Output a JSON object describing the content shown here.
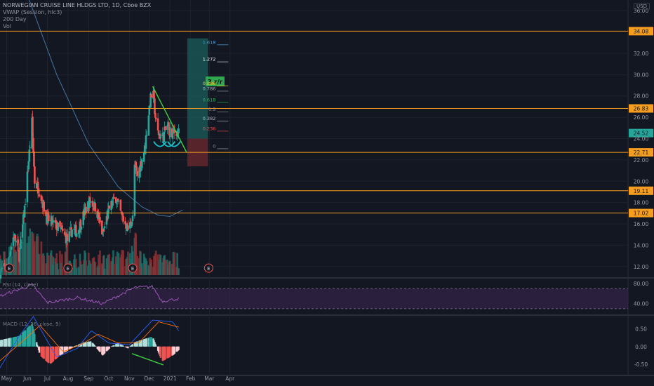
{
  "legend": {
    "title": "NORWEGIAN CRUISE LINE HLDGS LTD, 1D, Cboe BZX",
    "lines": [
      "VWAP (Session, hlc3)",
      "200 Day",
      "Vol"
    ]
  },
  "currency": "USD",
  "colors": {
    "background": "#131722",
    "up": "#26a69a",
    "down": "#ef5350",
    "level_line": "#f59d1f",
    "trendline": "#3fd03f",
    "ma": "#5b9bd5",
    "rsi": "#9b59b6",
    "macd": "#2962ff",
    "signal": "#ff6d00"
  },
  "chart_data": [
    {
      "type": "candlestick",
      "title": "NORWEGIAN CRUISE LINE HLDGS LTD, 1D, Cboe BZX",
      "y_axis_labels": [
        "36.00",
        "34.08",
        "32.00",
        "30.00",
        "28.00",
        "26.83",
        "26.00",
        "24.52",
        "24.00",
        "22.71",
        "22.00",
        "20.00",
        "19.11",
        "18.00",
        "17.02",
        "16.00",
        "14.00",
        "12.00"
      ],
      "y_ticks": [
        36,
        32,
        30,
        28,
        26,
        24,
        22,
        20,
        18,
        16,
        14,
        12
      ],
      "ylim": [
        11,
        37
      ],
      "x_ticks": [
        "May",
        "Jun",
        "Jul",
        "Aug",
        "Sep",
        "Oct",
        "Nov",
        "Dec",
        "2021",
        "Feb",
        "Mar",
        "Apr"
      ],
      "x_tick_dates": [
        "2020-05-01",
        "2020-06-01",
        "2020-07-01",
        "2020-08-01",
        "2020-09-01",
        "2020-10-01",
        "2020-11-01",
        "2020-12-01",
        "2021-01-01",
        "2021-02-01",
        "2021-03-01",
        "2021-04-01"
      ],
      "price_path": [
        [
          "2020-04-21",
          11.5
        ],
        [
          "2020-05-01",
          12.0
        ],
        [
          "2020-05-12",
          15.0
        ],
        [
          "2020-05-20",
          13.0
        ],
        [
          "2020-05-28",
          17.5
        ],
        [
          "2020-06-03",
          22.0
        ],
        [
          "2020-06-08",
          25.5
        ],
        [
          "2020-06-12",
          20.0
        ],
        [
          "2020-06-20",
          19.0
        ],
        [
          "2020-06-30",
          16.5
        ],
        [
          "2020-07-10",
          16.0
        ],
        [
          "2020-07-20",
          15.5
        ],
        [
          "2020-07-31",
          14.5
        ],
        [
          "2020-08-07",
          15.5
        ],
        [
          "2020-08-15",
          15.2
        ],
        [
          "2020-08-25",
          17.0
        ],
        [
          "2020-09-03",
          18.2
        ],
        [
          "2020-09-12",
          17.5
        ],
        [
          "2020-09-22",
          15.0
        ],
        [
          "2020-10-02",
          17.5
        ],
        [
          "2020-10-12",
          18.5
        ],
        [
          "2020-10-20",
          16.8
        ],
        [
          "2020-10-30",
          15.5
        ],
        [
          "2020-11-06",
          16.5
        ],
        [
          "2020-11-09",
          21.5
        ],
        [
          "2020-11-13",
          20.5
        ],
        [
          "2020-11-24",
          23.0
        ],
        [
          "2020-12-02",
          27.5
        ],
        [
          "2020-12-06",
          28.6
        ],
        [
          "2020-12-12",
          24.8
        ],
        [
          "2020-12-20",
          24.0
        ],
        [
          "2020-12-28",
          25.2
        ],
        [
          "2021-01-04",
          24.3
        ],
        [
          "2021-01-10",
          24.8
        ],
        [
          "2021-01-14",
          24.5
        ]
      ],
      "volume_events": [
        {
          "date": "2020-05-05",
          "label": "E"
        },
        {
          "date": "2020-08-01",
          "label": "E"
        },
        {
          "date": "2020-11-06",
          "label": "E"
        },
        {
          "date": "2021-02-28",
          "label": "E"
        }
      ],
      "horizontal_levels": [
        34.08,
        26.83,
        22.71,
        19.11,
        17.02
      ],
      "last_price": 24.52,
      "trendline": {
        "start": [
          "2020-12-06",
          28.9
        ],
        "end": [
          "2021-01-26",
          22.7
        ]
      },
      "moving_average_path": [
        [
          "2020-04-21",
          44.0
        ],
        [
          "2020-06-01",
          37.5
        ],
        [
          "2020-07-15",
          30.0
        ],
        [
          "2020-09-01",
          23.5
        ],
        [
          "2020-10-15",
          19.5
        ],
        [
          "2020-11-20",
          17.6
        ],
        [
          "2020-12-15",
          16.8
        ],
        [
          "2021-01-01",
          16.7
        ],
        [
          "2021-01-20",
          17.3
        ]
      ],
      "patterns": [
        {
          "type": "cup",
          "center": "2020-12-17",
          "y": 23.4
        },
        {
          "type": "cup",
          "center": "2020-12-30",
          "y": 23.4
        },
        {
          "type": "cup",
          "center": "2021-01-07",
          "y": 23.4
        }
      ],
      "risk_reward": {
        "label": "3 r/r",
        "start": "2021-01-27",
        "end": "2021-02-27",
        "entry": 24.0,
        "target": 33.4,
        "stop": 21.4
      },
      "fibonacci": [
        {
          "label": "1.618",
          "value": 32.8,
          "color": "#4aa3df"
        },
        {
          "label": "1.272",
          "value": 31.2,
          "color": "#ffffff"
        },
        {
          "label": "0.886",
          "value": 28.95,
          "color": "#f0d43a"
        },
        {
          "label": "0.786",
          "value": 28.45,
          "color": "#b2b5be"
        },
        {
          "label": "0.618",
          "value": 27.4,
          "color": "#2dbb5b"
        },
        {
          "label": "0.5",
          "value": 26.5,
          "color": "#9598a1"
        },
        {
          "label": "0.382",
          "value": 25.65,
          "color": "#b2b5be"
        },
        {
          "label": "0.236",
          "value": 24.7,
          "color": "#ef5350"
        },
        {
          "label": "0",
          "value": 23.05,
          "color": "#9598a1"
        }
      ]
    },
    {
      "type": "line",
      "title": "RSI (14, close)",
      "y_axis_labels": [
        "80.00",
        "40.00"
      ],
      "ylim": [
        20,
        90
      ],
      "bands": [
        70,
        30
      ],
      "path": [
        [
          "2020-04-21",
          55
        ],
        [
          "2020-06-08",
          78
        ],
        [
          "2020-07-01",
          42
        ],
        [
          "2020-08-15",
          52
        ],
        [
          "2020-09-22",
          40
        ],
        [
          "2020-11-09",
          72
        ],
        [
          "2020-12-06",
          74
        ],
        [
          "2020-12-20",
          45
        ],
        [
          "2021-01-14",
          50
        ]
      ]
    },
    {
      "type": "bar",
      "title": "MACD (12, 26, close, 9)",
      "y_axis_labels": [
        "0.50",
        "0.00",
        "-0.50"
      ],
      "ylim": [
        -0.72,
        0.85
      ],
      "hist_path": [
        [
          "2020-04-21",
          0.18
        ],
        [
          "2020-05-20",
          0.3
        ],
        [
          "2020-06-08",
          0.65
        ],
        [
          "2020-06-20",
          -0.25
        ],
        [
          "2020-07-05",
          -0.5
        ],
        [
          "2020-07-20",
          -0.25
        ],
        [
          "2020-08-10",
          0.0
        ],
        [
          "2020-08-25",
          0.12
        ],
        [
          "2020-09-05",
          0.15
        ],
        [
          "2020-09-22",
          -0.25
        ],
        [
          "2020-10-05",
          0.0
        ],
        [
          "2020-10-15",
          0.1
        ],
        [
          "2020-10-30",
          -0.05
        ],
        [
          "2020-11-09",
          0.12
        ],
        [
          "2020-11-25",
          0.22
        ],
        [
          "2020-12-06",
          0.28
        ],
        [
          "2020-12-20",
          -0.42
        ],
        [
          "2021-01-05",
          -0.25
        ],
        [
          "2021-01-14",
          -0.1
        ]
      ],
      "macd_path": [
        [
          "2020-04-21",
          -0.6
        ],
        [
          "2020-05-20",
          0.3
        ],
        [
          "2020-06-10",
          0.85
        ],
        [
          "2020-07-15",
          -0.3
        ],
        [
          "2020-08-15",
          -0.05
        ],
        [
          "2020-09-05",
          0.45
        ],
        [
          "2020-10-01",
          0.1
        ],
        [
          "2020-11-01",
          0.05
        ],
        [
          "2020-12-06",
          0.75
        ],
        [
          "2021-01-05",
          0.7
        ],
        [
          "2021-01-14",
          0.45
        ]
      ],
      "signal_path": [
        [
          "2020-04-21",
          -0.4
        ],
        [
          "2020-05-25",
          0.15
        ],
        [
          "2020-06-20",
          0.6
        ],
        [
          "2020-07-25",
          -0.15
        ],
        [
          "2020-08-25",
          0.1
        ],
        [
          "2020-09-15",
          0.35
        ],
        [
          "2020-10-15",
          0.1
        ],
        [
          "2020-11-15",
          0.1
        ],
        [
          "2020-12-15",
          0.7
        ],
        [
          "2021-01-14",
          0.55
        ]
      ],
      "divergence_line": {
        "start": [
          "2020-11-05",
          -0.2
        ],
        "end": [
          "2020-12-22",
          -0.52
        ]
      }
    }
  ]
}
